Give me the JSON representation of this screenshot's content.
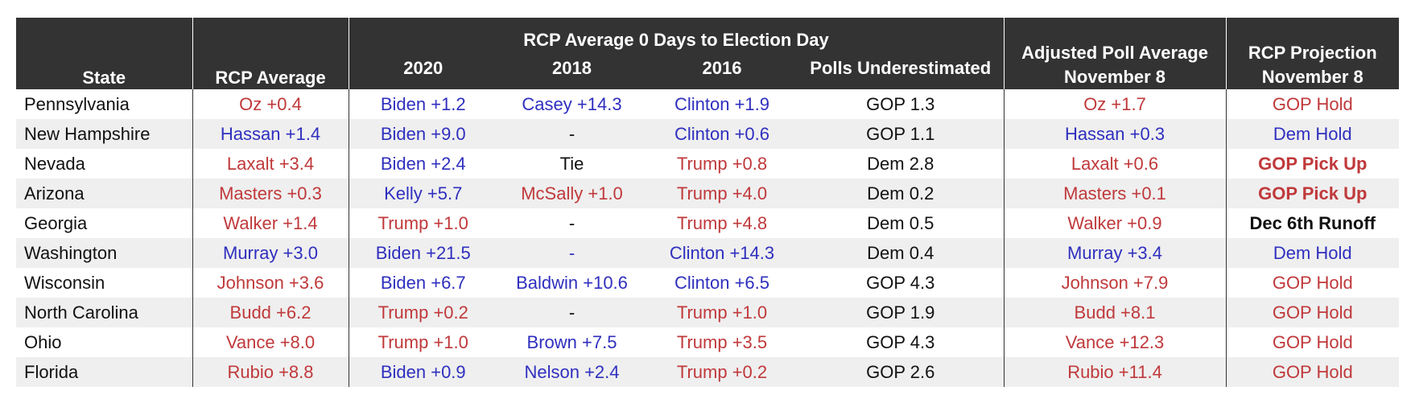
{
  "colors": {
    "header_bg": "#333333",
    "header_text": "#ffffff",
    "rep": "#c0393b",
    "dem": "#2f2fbf",
    "neutral": "#111111",
    "stripe": "#efefef"
  },
  "header": {
    "state": "State",
    "rcp_average": "RCP Average",
    "group_title": "RCP Average 0 Days to Election Day",
    "y2020": "2020",
    "y2018": "2018",
    "y2016": "2016",
    "underestimated": "Polls Underestimated",
    "adjusted_line1": "Adjusted Poll Average",
    "adjusted_line2": "November 8",
    "projection_line1": "RCP Projection",
    "projection_line2": "November 8"
  },
  "rows": [
    {
      "state": "Pennsylvania",
      "rcp": "Oz +0.4",
      "rcp_party": "rep",
      "y2020": "Biden +1.2",
      "y2020_party": "dem",
      "y2018": "Casey +14.3",
      "y2018_party": "dem",
      "y2016": "Clinton +1.9",
      "y2016_party": "dem",
      "under": "GOP 1.3",
      "adjusted": "Oz +1.7",
      "adjusted_party": "rep",
      "projection": "GOP Hold",
      "projection_party": "rep",
      "projection_bold": false
    },
    {
      "state": "New Hampshire",
      "rcp": "Hassan +1.4",
      "rcp_party": "dem",
      "y2020": "Biden +9.0",
      "y2020_party": "dem",
      "y2018": "-",
      "y2018_party": "neu",
      "y2016": "Clinton +0.6",
      "y2016_party": "dem",
      "under": "GOP 1.1",
      "adjusted": "Hassan +0.3",
      "adjusted_party": "dem",
      "projection": "Dem Hold",
      "projection_party": "dem",
      "projection_bold": false
    },
    {
      "state": "Nevada",
      "rcp": "Laxalt +3.4",
      "rcp_party": "rep",
      "y2020": "Biden +2.4",
      "y2020_party": "dem",
      "y2018": "Tie",
      "y2018_party": "neu",
      "y2016": "Trump +0.8",
      "y2016_party": "rep",
      "under": "Dem 2.8",
      "adjusted": "Laxalt +0.6",
      "adjusted_party": "rep",
      "projection": "GOP Pick Up",
      "projection_party": "rep",
      "projection_bold": true
    },
    {
      "state": "Arizona",
      "rcp": "Masters +0.3",
      "rcp_party": "rep",
      "y2020": "Kelly +5.7",
      "y2020_party": "dem",
      "y2018": "McSally +1.0",
      "y2018_party": "rep",
      "y2016": "Trump +4.0",
      "y2016_party": "rep",
      "under": "Dem 0.2",
      "adjusted": "Masters +0.1",
      "adjusted_party": "rep",
      "projection": "GOP Pick Up",
      "projection_party": "rep",
      "projection_bold": true
    },
    {
      "state": "Georgia",
      "rcp": "Walker +1.4",
      "rcp_party": "rep",
      "y2020": "Trump +1.0",
      "y2020_party": "rep",
      "y2018": "-",
      "y2018_party": "neu",
      "y2016": "Trump +4.8",
      "y2016_party": "rep",
      "under": "Dem 0.5",
      "adjusted": "Walker +0.9",
      "adjusted_party": "rep",
      "projection": "Dec 6th Runoff",
      "projection_party": "neu",
      "projection_bold": true
    },
    {
      "state": "Washington",
      "rcp": "Murray +3.0",
      "rcp_party": "dem",
      "y2020": "Biden +21.5",
      "y2020_party": "dem",
      "y2018": "-",
      "y2018_party": "dem",
      "y2016": "Clinton +14.3",
      "y2016_party": "dem",
      "under": "Dem 0.4",
      "adjusted": "Murray +3.4",
      "adjusted_party": "dem",
      "projection": "Dem Hold",
      "projection_party": "dem",
      "projection_bold": false
    },
    {
      "state": "Wisconsin",
      "rcp": "Johnson +3.6",
      "rcp_party": "rep",
      "y2020": "Biden +6.7",
      "y2020_party": "dem",
      "y2018": "Baldwin +10.6",
      "y2018_party": "dem",
      "y2016": "Clinton +6.5",
      "y2016_party": "dem",
      "under": "GOP 4.3",
      "adjusted": "Johnson +7.9",
      "adjusted_party": "rep",
      "projection": "GOP Hold",
      "projection_party": "rep",
      "projection_bold": false
    },
    {
      "state": "North Carolina",
      "rcp": "Budd +6.2",
      "rcp_party": "rep",
      "y2020": "Trump +0.2",
      "y2020_party": "rep",
      "y2018": "-",
      "y2018_party": "neu",
      "y2016": "Trump +1.0",
      "y2016_party": "rep",
      "under": "GOP 1.9",
      "adjusted": "Budd +8.1",
      "adjusted_party": "rep",
      "projection": "GOP Hold",
      "projection_party": "rep",
      "projection_bold": false
    },
    {
      "state": "Ohio",
      "rcp": "Vance +8.0",
      "rcp_party": "rep",
      "y2020": "Trump +1.0",
      "y2020_party": "rep",
      "y2018": "Brown +7.5",
      "y2018_party": "dem",
      "y2016": "Trump +3.5",
      "y2016_party": "rep",
      "under": "GOP 4.3",
      "adjusted": "Vance +12.3",
      "adjusted_party": "rep",
      "projection": "GOP Hold",
      "projection_party": "rep",
      "projection_bold": false
    },
    {
      "state": "Florida",
      "rcp": "Rubio +8.8",
      "rcp_party": "rep",
      "y2020": "Biden +0.9",
      "y2020_party": "dem",
      "y2018": "Nelson +2.4",
      "y2018_party": "dem",
      "y2016": "Trump +0.2",
      "y2016_party": "rep",
      "under": "GOP 2.6",
      "adjusted": "Rubio +11.4",
      "adjusted_party": "rep",
      "projection": "GOP Hold",
      "projection_party": "rep",
      "projection_bold": false
    }
  ]
}
